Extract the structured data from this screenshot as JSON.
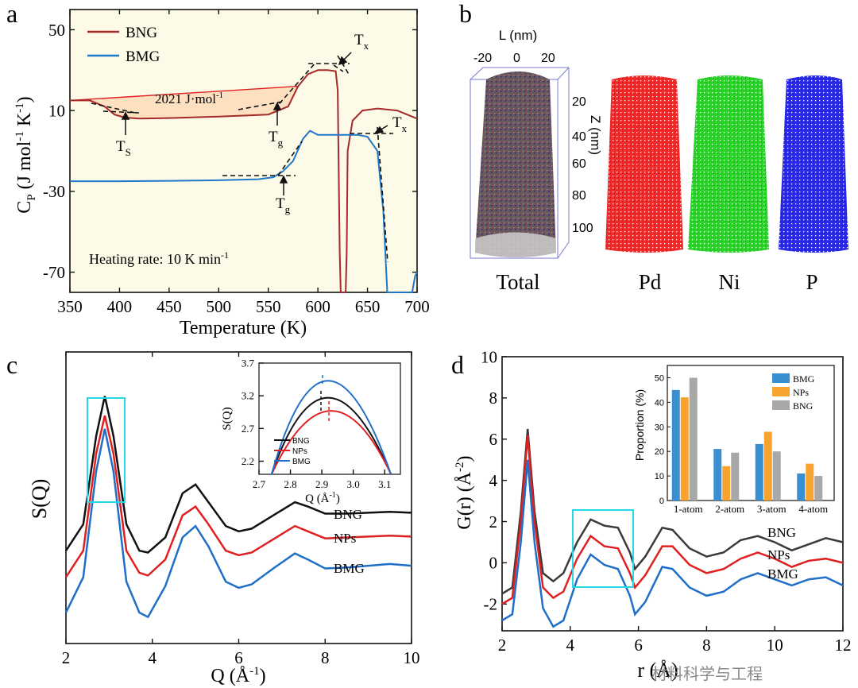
{
  "colors": {
    "bng_a": "#a52a2a",
    "bmg_a": "#1f78c8",
    "black": "#111111",
    "red": "#e02020",
    "blue": "#1f6fc8",
    "cyan": "#25d8e8",
    "pd": "#e81c1c",
    "ni": "#1fcc1f",
    "p": "#1c1ce0",
    "bar_bmg": "#3a8fd0",
    "bar_nps": "#f7a32e",
    "bar_bng": "#a8a8a8",
    "fill": "#fde0c0"
  },
  "panels": {
    "a": {
      "letter": "a",
      "xlabel": "Temperature (K)",
      "ylabel_main": "C",
      "ylabel_sub": "P",
      "ylabel_rest": " (J mol",
      "ylabel_sup1": "-1",
      "ylabel_k": " K",
      "ylabel_sup2": "-1",
      "ylabel_close": ")",
      "legend": [
        "BNG",
        "BMG"
      ],
      "area_label": "2021 J·mol",
      "area_sup": "-1",
      "heating": "Heating rate: 10 K min",
      "heating_sup": "-1",
      "ts": "T",
      "ts_sub": "S",
      "tg": "T",
      "tg_sub": "g",
      "tx": "T",
      "tx_sub": "x"
    },
    "b": {
      "letter": "b",
      "l_axis": "L (nm)",
      "z_axis": "Z (nm)",
      "labels": [
        "Total",
        "Pd",
        "Ni",
        "P"
      ]
    },
    "c": {
      "letter": "c",
      "xlabel": "Q (Å",
      "xlabel_sup": "-1",
      "xlabel_close": ")",
      "ylabel": "S(Q)",
      "curve_labels": [
        "BNG",
        "NPs",
        "BMG"
      ],
      "inset_ylabel": "S(Q)",
      "inset_xlabel": "Q (Å",
      "inset_xlabel_sup": "-1",
      "inset_xlabel_close": ")",
      "inset_legend": [
        "BNG",
        "NPs",
        "BMG"
      ]
    },
    "d": {
      "letter": "d",
      "xlabel": "r (Å)",
      "ylabel": "G(r) (Å",
      "ylabel_sup": "-2",
      "ylabel_close": ")",
      "curve_labels": [
        "BNG",
        "NPs",
        "BMG"
      ],
      "inset_ylabel": "Proportion (%)"
    }
  },
  "watermark": "材料科学与工程",
  "chart_data": [
    {
      "type": "line",
      "panel": "a",
      "title": "",
      "xlabel": "Temperature (K)",
      "ylabel": "CP (J mol-1 K-1)",
      "xlim": [
        350,
        700
      ],
      "ylim": [
        -80,
        60
      ],
      "xticks": [
        350,
        400,
        450,
        500,
        550,
        600,
        650,
        700
      ],
      "yticks": [
        -70,
        -30,
        10,
        50
      ],
      "series": [
        {
          "name": "BNG",
          "points": [
            [
              350,
              15
            ],
            [
              370,
              15
            ],
            [
              385,
              12
            ],
            [
              395,
              8
            ],
            [
              405,
              6.5
            ],
            [
              420,
              6
            ],
            [
              450,
              6.3
            ],
            [
              500,
              7
            ],
            [
              550,
              8
            ],
            [
              570,
              12
            ],
            [
              580,
              22
            ],
            [
              590,
              28
            ],
            [
              600,
              30
            ],
            [
              610,
              30
            ],
            [
              618,
              29.5
            ],
            [
              620,
              20
            ],
            [
              622,
              -60
            ],
            [
              623,
              -80
            ],
            [
              628,
              -80
            ],
            [
              629,
              -60
            ],
            [
              630,
              -10
            ],
            [
              635,
              5
            ],
            [
              645,
              10
            ],
            [
              660,
              11
            ],
            [
              680,
              10
            ],
            [
              700,
              6
            ]
          ]
        },
        {
          "name": "BMG",
          "points": [
            [
              350,
              -25
            ],
            [
              400,
              -25
            ],
            [
              450,
              -24.8
            ],
            [
              500,
              -24.5
            ],
            [
              540,
              -24
            ],
            [
              555,
              -23
            ],
            [
              565,
              -20
            ],
            [
              575,
              -15
            ],
            [
              585,
              -4
            ],
            [
              592,
              0
            ],
            [
              600,
              -2
            ],
            [
              620,
              -2
            ],
            [
              640,
              -2
            ],
            [
              650,
              -3
            ],
            [
              660,
              -10
            ],
            [
              666,
              -40
            ],
            [
              670,
              -80
            ],
            [
              695,
              -80
            ],
            [
              698,
              -72
            ],
            [
              700,
              -70
            ]
          ]
        }
      ],
      "annotations": [
        "2021 J·mol-1",
        "Ts",
        "Tg",
        "Tx",
        "Heating rate: 10 K min-1"
      ]
    },
    {
      "type": "line",
      "panel": "c",
      "xlabel": "Q (Å-1)",
      "ylabel": "S(Q)",
      "xlim": [
        2,
        10
      ],
      "xticks": [
        2,
        4,
        6,
        8,
        10
      ],
      "series": [
        {
          "name": "BNG",
          "points": [
            [
              2,
              0.3
            ],
            [
              2.4,
              0.6
            ],
            [
              2.7,
              1.6
            ],
            [
              2.9,
              2.05
            ],
            [
              3.1,
              1.6
            ],
            [
              3.4,
              0.6
            ],
            [
              3.7,
              0.3
            ],
            [
              3.9,
              0.28
            ],
            [
              4.3,
              0.45
            ],
            [
              4.7,
              0.95
            ],
            [
              5.0,
              1.05
            ],
            [
              5.3,
              0.85
            ],
            [
              5.7,
              0.58
            ],
            [
              6.0,
              0.52
            ],
            [
              6.3,
              0.55
            ],
            [
              6.8,
              0.7
            ],
            [
              7.3,
              0.85
            ],
            [
              7.6,
              0.8
            ],
            [
              8.0,
              0.72
            ],
            [
              8.5,
              0.72
            ],
            [
              9.0,
              0.73
            ],
            [
              9.5,
              0.74
            ],
            [
              10,
              0.73
            ]
          ]
        },
        {
          "name": "NPs",
          "points": [
            [
              2,
              0.0
            ],
            [
              2.4,
              0.3
            ],
            [
              2.7,
              1.4
            ],
            [
              2.9,
              1.83
            ],
            [
              3.1,
              1.4
            ],
            [
              3.4,
              0.3
            ],
            [
              3.7,
              0.05
            ],
            [
              3.9,
              0.02
            ],
            [
              4.3,
              0.2
            ],
            [
              4.7,
              0.7
            ],
            [
              5.0,
              0.8
            ],
            [
              5.3,
              0.6
            ],
            [
              5.7,
              0.3
            ],
            [
              6.0,
              0.25
            ],
            [
              6.3,
              0.28
            ],
            [
              6.8,
              0.43
            ],
            [
              7.3,
              0.58
            ],
            [
              7.6,
              0.52
            ],
            [
              8.0,
              0.44
            ],
            [
              8.5,
              0.45
            ],
            [
              9.0,
              0.46
            ],
            [
              9.5,
              0.47
            ],
            [
              10,
              0.46
            ]
          ]
        },
        {
          "name": "BMG",
          "points": [
            [
              2,
              -0.4
            ],
            [
              2.4,
              0.0
            ],
            [
              2.7,
              1.2
            ],
            [
              2.9,
              1.68
            ],
            [
              3.1,
              1.2
            ],
            [
              3.4,
              -0.05
            ],
            [
              3.7,
              -0.4
            ],
            [
              3.9,
              -0.45
            ],
            [
              4.3,
              -0.1
            ],
            [
              4.7,
              0.45
            ],
            [
              5.0,
              0.58
            ],
            [
              5.3,
              0.35
            ],
            [
              5.7,
              -0.05
            ],
            [
              6.0,
              -0.12
            ],
            [
              6.3,
              -0.08
            ],
            [
              6.8,
              0.1
            ],
            [
              7.3,
              0.27
            ],
            [
              7.6,
              0.2
            ],
            [
              8.0,
              0.1
            ],
            [
              8.5,
              0.11
            ],
            [
              9.0,
              0.13
            ],
            [
              9.5,
              0.15
            ],
            [
              10,
              0.13
            ]
          ]
        }
      ]
    },
    {
      "type": "line",
      "panel": "c-inset",
      "xlabel": "Q (Å-1)",
      "ylabel": "S(Q)",
      "xlim": [
        2.7,
        3.15
      ],
      "ylim": [
        2.0,
        3.7
      ],
      "xticks": [
        2.7,
        2.8,
        2.9,
        3.0,
        3.1
      ],
      "yticks": [
        2.2,
        2.7,
        3.2,
        3.7
      ],
      "series": [
        {
          "name": "BNG",
          "peak_x": 2.91,
          "peak_y": 3.17
        },
        {
          "name": "NPs",
          "peak_x": 2.93,
          "peak_y": 2.97
        },
        {
          "name": "BMG",
          "peak_x": 2.91,
          "peak_y": 3.43
        }
      ]
    },
    {
      "type": "line",
      "panel": "d",
      "xlabel": "r (Å)",
      "ylabel": "G(r) (Å-2)",
      "xlim": [
        2,
        12
      ],
      "ylim": [
        -4,
        10
      ],
      "xticks": [
        2,
        4,
        6,
        8,
        10,
        12
      ],
      "yticks": [
        -2,
        0,
        2,
        4,
        6,
        8,
        10
      ],
      "series": [
        {
          "name": "BNG",
          "points": [
            [
              2,
              -1.5
            ],
            [
              2.3,
              -1.2
            ],
            [
              2.55,
              2.5
            ],
            [
              2.75,
              6.5
            ],
            [
              2.95,
              2.5
            ],
            [
              3.2,
              -0.5
            ],
            [
              3.5,
              -0.9
            ],
            [
              3.8,
              -0.5
            ],
            [
              4.2,
              1.0
            ],
            [
              4.6,
              2.1
            ],
            [
              5.0,
              1.8
            ],
            [
              5.4,
              1.7
            ],
            [
              5.75,
              0.5
            ],
            [
              5.9,
              -0.3
            ],
            [
              6.2,
              0.3
            ],
            [
              6.7,
              1.7
            ],
            [
              7.0,
              1.6
            ],
            [
              7.5,
              0.7
            ],
            [
              8.0,
              0.3
            ],
            [
              8.5,
              0.5
            ],
            [
              9.0,
              1.1
            ],
            [
              9.5,
              1.3
            ],
            [
              10,
              1.0
            ],
            [
              10.5,
              0.6
            ],
            [
              11,
              0.9
            ],
            [
              11.5,
              1.2
            ],
            [
              12,
              1.0
            ]
          ]
        },
        {
          "name": "NPs",
          "points": [
            [
              2,
              -2.0
            ],
            [
              2.3,
              -1.7
            ],
            [
              2.55,
              2.0
            ],
            [
              2.75,
              6.2
            ],
            [
              2.95,
              2.0
            ],
            [
              3.2,
              -1.2
            ],
            [
              3.5,
              -1.7
            ],
            [
              3.8,
              -1.4
            ],
            [
              4.2,
              0.2
            ],
            [
              4.6,
              1.3
            ],
            [
              5.0,
              0.8
            ],
            [
              5.4,
              0.7
            ],
            [
              5.75,
              -0.5
            ],
            [
              5.9,
              -1.2
            ],
            [
              6.2,
              -0.6
            ],
            [
              6.7,
              0.8
            ],
            [
              7.0,
              0.8
            ],
            [
              7.5,
              -0.1
            ],
            [
              8.0,
              -0.5
            ],
            [
              8.5,
              -0.3
            ],
            [
              9.0,
              0.2
            ],
            [
              9.5,
              0.5
            ],
            [
              10,
              0.2
            ],
            [
              10.5,
              -0.2
            ],
            [
              11,
              0.1
            ],
            [
              11.5,
              0.2
            ],
            [
              12,
              0.0
            ]
          ]
        },
        {
          "name": "BMG",
          "points": [
            [
              2,
              -2.8
            ],
            [
              2.3,
              -2.5
            ],
            [
              2.55,
              1.0
            ],
            [
              2.75,
              5.0
            ],
            [
              2.95,
              1.0
            ],
            [
              3.2,
              -2.2
            ],
            [
              3.5,
              -3.1
            ],
            [
              3.8,
              -2.8
            ],
            [
              4.2,
              -0.8
            ],
            [
              4.6,
              0.4
            ],
            [
              5.0,
              -0.1
            ],
            [
              5.4,
              -0.3
            ],
            [
              5.75,
              -1.6
            ],
            [
              5.9,
              -2.5
            ],
            [
              6.2,
              -1.9
            ],
            [
              6.7,
              -0.2
            ],
            [
              7.0,
              -0.3
            ],
            [
              7.5,
              -1.2
            ],
            [
              8.0,
              -1.6
            ],
            [
              8.5,
              -1.4
            ],
            [
              9.0,
              -0.8
            ],
            [
              9.5,
              -0.5
            ],
            [
              10,
              -0.8
            ],
            [
              10.5,
              -1.1
            ],
            [
              11,
              -0.8
            ],
            [
              11.5,
              -0.7
            ],
            [
              12,
              -1.1
            ]
          ]
        }
      ]
    },
    {
      "type": "bar",
      "panel": "d-inset",
      "ylabel": "Proportion (%)",
      "ylim": [
        0,
        55
      ],
      "yticks": [
        0,
        10,
        20,
        30,
        40,
        50
      ],
      "categories": [
        "1-atom",
        "2-atom",
        "3-atom",
        "4-atom"
      ],
      "series": [
        {
          "name": "BMG",
          "values": [
            45,
            21,
            23,
            11
          ]
        },
        {
          "name": "NPs",
          "values": [
            42,
            14,
            28,
            15
          ]
        },
        {
          "name": "BNG",
          "values": [
            50,
            19.5,
            20,
            10
          ]
        }
      ]
    }
  ]
}
